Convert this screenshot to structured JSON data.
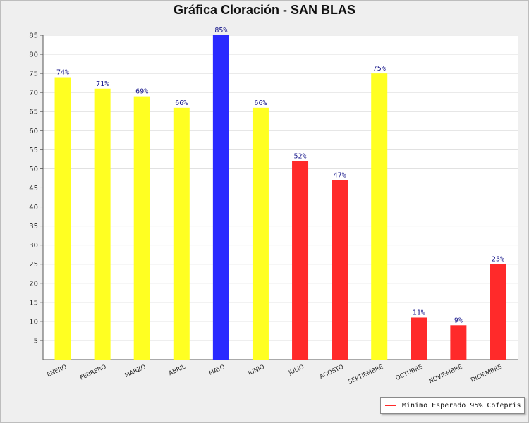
{
  "chart_data": {
    "type": "bar",
    "title": "Gráfica Cloración - SAN BLAS",
    "categories": [
      "ENERO",
      "FEBRERO",
      "MARZO",
      "ABRIL",
      "MAYO",
      "JUNIO",
      "JULIO",
      "AGOSTO",
      "SEPTIEMBRE",
      "OCTUBRE",
      "NOVIEMBRE",
      "DICIEMBRE"
    ],
    "values": [
      74,
      71,
      69,
      66,
      85,
      66,
      52,
      47,
      75,
      11,
      9,
      25
    ],
    "data_labels": [
      "74%",
      "71%",
      "69%",
      "66%",
      "85%",
      "66%",
      "52%",
      "47%",
      "75%",
      "11%",
      "9%",
      "25%"
    ],
    "bar_colors": [
      "#ffff22",
      "#ffff22",
      "#ffff22",
      "#ffff22",
      "#2a2aff",
      "#ffff22",
      "#ff2a2a",
      "#ff2a2a",
      "#ffff22",
      "#ff2a2a",
      "#ff2a2a",
      "#ff2a2a"
    ],
    "ylim": [
      0,
      85
    ],
    "yticks": [
      5,
      10,
      15,
      20,
      25,
      30,
      35,
      40,
      45,
      50,
      55,
      60,
      65,
      70,
      75,
      80,
      85
    ],
    "grid": true,
    "legend": {
      "position": "bottom-right",
      "entries": [
        {
          "label": "Minimo Esperado 95% Cofepris",
          "color": "#ff2a2a"
        }
      ]
    }
  }
}
